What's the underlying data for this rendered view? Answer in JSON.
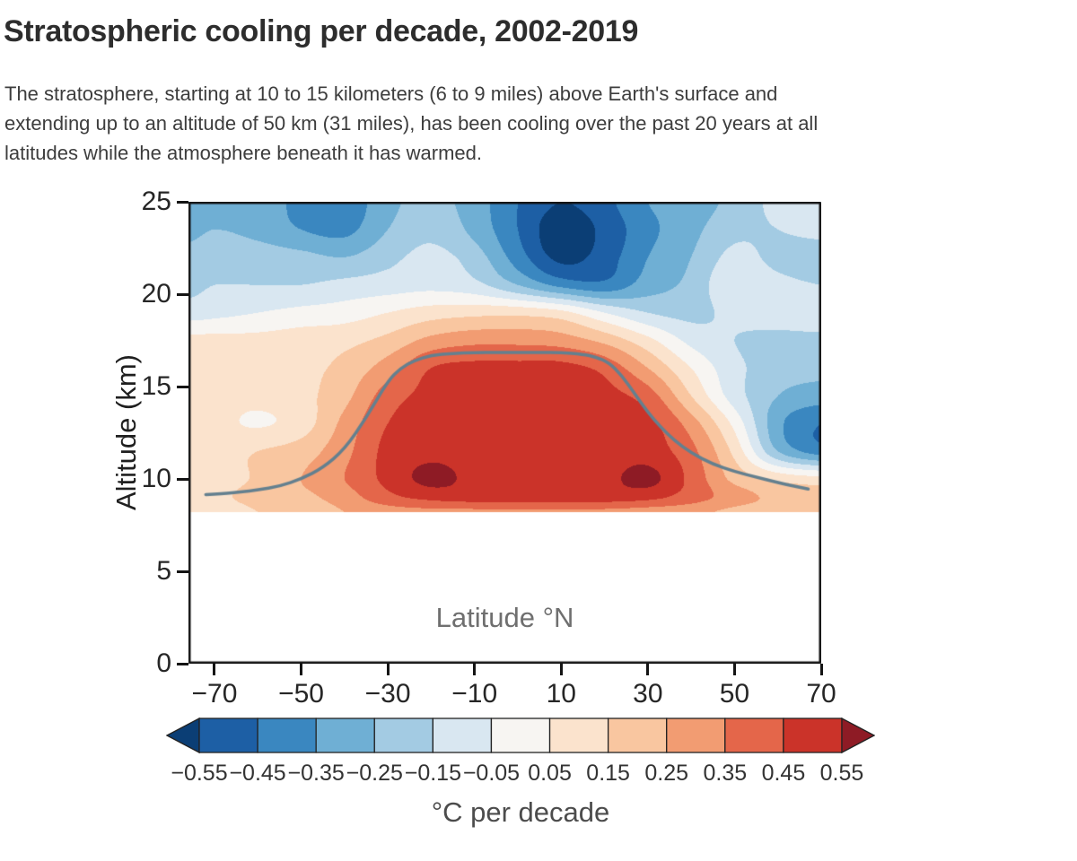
{
  "title": "Stratospheric cooling per decade, 2002-2019",
  "description_lines": [
    "The stratosphere, starting at 10 to 15 kilometers (6 to 9 miles) above Earth's surface and",
    "extending up to an altitude of 50 km (31 miles), has been cooling over the past 20 years at all",
    "latitudes while the atmosphere beneath it has warmed."
  ],
  "chart_data": {
    "type": "heatmap",
    "title": "Stratospheric cooling per decade, 2002-2019",
    "xlabel": "Latitude °N",
    "ylabel": "Altitude (km)",
    "xlim": [
      -76,
      70
    ],
    "ylim": [
      0,
      25
    ],
    "data_alt_min": 8.2,
    "grid_on": false,
    "x_tick_values": [
      -70,
      -50,
      -30,
      -10,
      10,
      30,
      50,
      70
    ],
    "x_tick_labels": [
      "−70",
      "−50",
      "−30",
      "−10",
      "10",
      "30",
      "50",
      "70"
    ],
    "y_tick_values": [
      0,
      5,
      10,
      15,
      20,
      25
    ],
    "y_tick_labels": [
      "0",
      "5",
      "10",
      "15",
      "20",
      "25"
    ],
    "grid": {
      "lats": [
        -76,
        -70,
        -60,
        -50,
        -40,
        -30,
        -20,
        -10,
        0,
        10,
        20,
        30,
        40,
        50,
        60,
        70
      ],
      "alts": [
        8.2,
        9,
        10,
        11.5,
        13,
        14.5,
        16,
        17.5,
        19,
        20.5,
        22,
        23.5,
        25
      ],
      "values": [
        [
          0.12,
          0.12,
          0.15,
          0.18,
          0.25,
          0.3,
          0.32,
          0.32,
          0.32,
          0.32,
          0.32,
          0.3,
          0.28,
          0.22,
          0.18,
          0.15
        ],
        [
          0.13,
          0.14,
          0.17,
          0.22,
          0.3,
          0.42,
          0.48,
          0.5,
          0.5,
          0.5,
          0.5,
          0.48,
          0.4,
          0.3,
          0.22,
          0.18
        ],
        [
          0.12,
          0.13,
          0.16,
          0.25,
          0.35,
          0.48,
          0.58,
          0.52,
          0.5,
          0.5,
          0.52,
          0.58,
          0.42,
          0.22,
          0.12,
          0.08
        ],
        [
          0.12,
          0.12,
          0.15,
          0.2,
          0.32,
          0.48,
          0.52,
          0.5,
          0.5,
          0.5,
          0.5,
          0.5,
          0.38,
          0.12,
          -0.25,
          -0.4
        ],
        [
          0.1,
          0.08,
          0.04,
          0.1,
          0.28,
          0.45,
          0.5,
          0.5,
          0.5,
          0.5,
          0.5,
          0.48,
          0.3,
          0.02,
          -0.32,
          -0.45
        ],
        [
          0.12,
          0.1,
          0.08,
          0.12,
          0.22,
          0.4,
          0.48,
          0.5,
          0.5,
          0.5,
          0.48,
          0.4,
          0.15,
          -0.1,
          -0.25,
          -0.3
        ],
        [
          0.1,
          0.1,
          0.1,
          0.12,
          0.18,
          0.3,
          0.45,
          0.48,
          0.48,
          0.48,
          0.42,
          0.25,
          0.05,
          -0.12,
          -0.2,
          -0.22
        ],
        [
          0.08,
          0.08,
          0.08,
          0.1,
          0.12,
          0.18,
          0.28,
          0.32,
          0.32,
          0.3,
          0.22,
          0.08,
          -0.08,
          -0.15,
          -0.18,
          -0.18
        ],
        [
          -0.1,
          -0.08,
          -0.05,
          -0.02,
          0.0,
          0.05,
          0.1,
          0.12,
          0.12,
          0.08,
          -0.05,
          -0.15,
          -0.18,
          -0.12,
          -0.1,
          -0.08
        ],
        [
          -0.18,
          -0.15,
          -0.15,
          -0.15,
          -0.12,
          -0.1,
          -0.08,
          -0.12,
          -0.25,
          -0.38,
          -0.42,
          -0.3,
          -0.22,
          -0.06,
          -0.12,
          -0.15
        ],
        [
          -0.22,
          -0.2,
          -0.2,
          -0.22,
          -0.25,
          -0.18,
          -0.12,
          -0.2,
          -0.4,
          -0.58,
          -0.5,
          -0.35,
          -0.25,
          -0.12,
          -0.18,
          -0.2
        ],
        [
          -0.28,
          -0.25,
          -0.28,
          -0.35,
          -0.38,
          -0.25,
          -0.18,
          -0.28,
          -0.45,
          -0.62,
          -0.52,
          -0.38,
          -0.28,
          -0.18,
          -0.15,
          -0.12
        ],
        [
          -0.35,
          -0.32,
          -0.3,
          -0.38,
          -0.42,
          -0.28,
          -0.22,
          -0.3,
          -0.45,
          -0.55,
          -0.48,
          -0.35,
          -0.3,
          -0.22,
          -0.12,
          -0.1
        ]
      ]
    },
    "tropopause_line": {
      "lats": [
        -72,
        -68,
        -64,
        -60,
        -55,
        -50,
        -45,
        -40,
        -35,
        -30,
        -27,
        -24,
        -20,
        -15,
        -10,
        -5,
        0,
        5,
        10,
        15,
        18,
        21,
        24,
        27,
        30,
        33,
        36,
        40,
        45,
        50,
        55,
        60,
        64,
        67
      ],
      "alts": [
        9.15,
        9.2,
        9.3,
        9.4,
        9.6,
        10.0,
        10.6,
        11.6,
        13.3,
        15.3,
        16.0,
        16.4,
        16.7,
        16.8,
        16.85,
        16.85,
        16.85,
        16.85,
        16.85,
        16.75,
        16.6,
        16.3,
        15.6,
        14.6,
        13.6,
        12.8,
        12.1,
        11.4,
        10.8,
        10.4,
        10.1,
        9.8,
        9.6,
        9.45
      ]
    },
    "line_color": "#64808f",
    "colorbar": {
      "label": "°C per decade",
      "thresholds": [
        -0.55,
        -0.45,
        -0.35,
        -0.25,
        -0.15,
        -0.05,
        0.05,
        0.15,
        0.25,
        0.35,
        0.45,
        0.55
      ],
      "tick_labels": [
        "−0.55",
        "−0.45",
        "−0.35",
        "−0.25",
        "−0.15",
        "−0.05",
        "0.05",
        "0.15",
        "0.25",
        "0.35",
        "0.45",
        "0.55"
      ],
      "colors": [
        "#0b3e75",
        "#1d5fa5",
        "#3a87c0",
        "#6fafd4",
        "#a3cbe3",
        "#d9e7f1",
        "#f7f5f2",
        "#fbe3cd",
        "#f9c6a0",
        "#f29c72",
        "#e4664a",
        "#cb3329",
        "#8e1b25"
      ]
    }
  }
}
